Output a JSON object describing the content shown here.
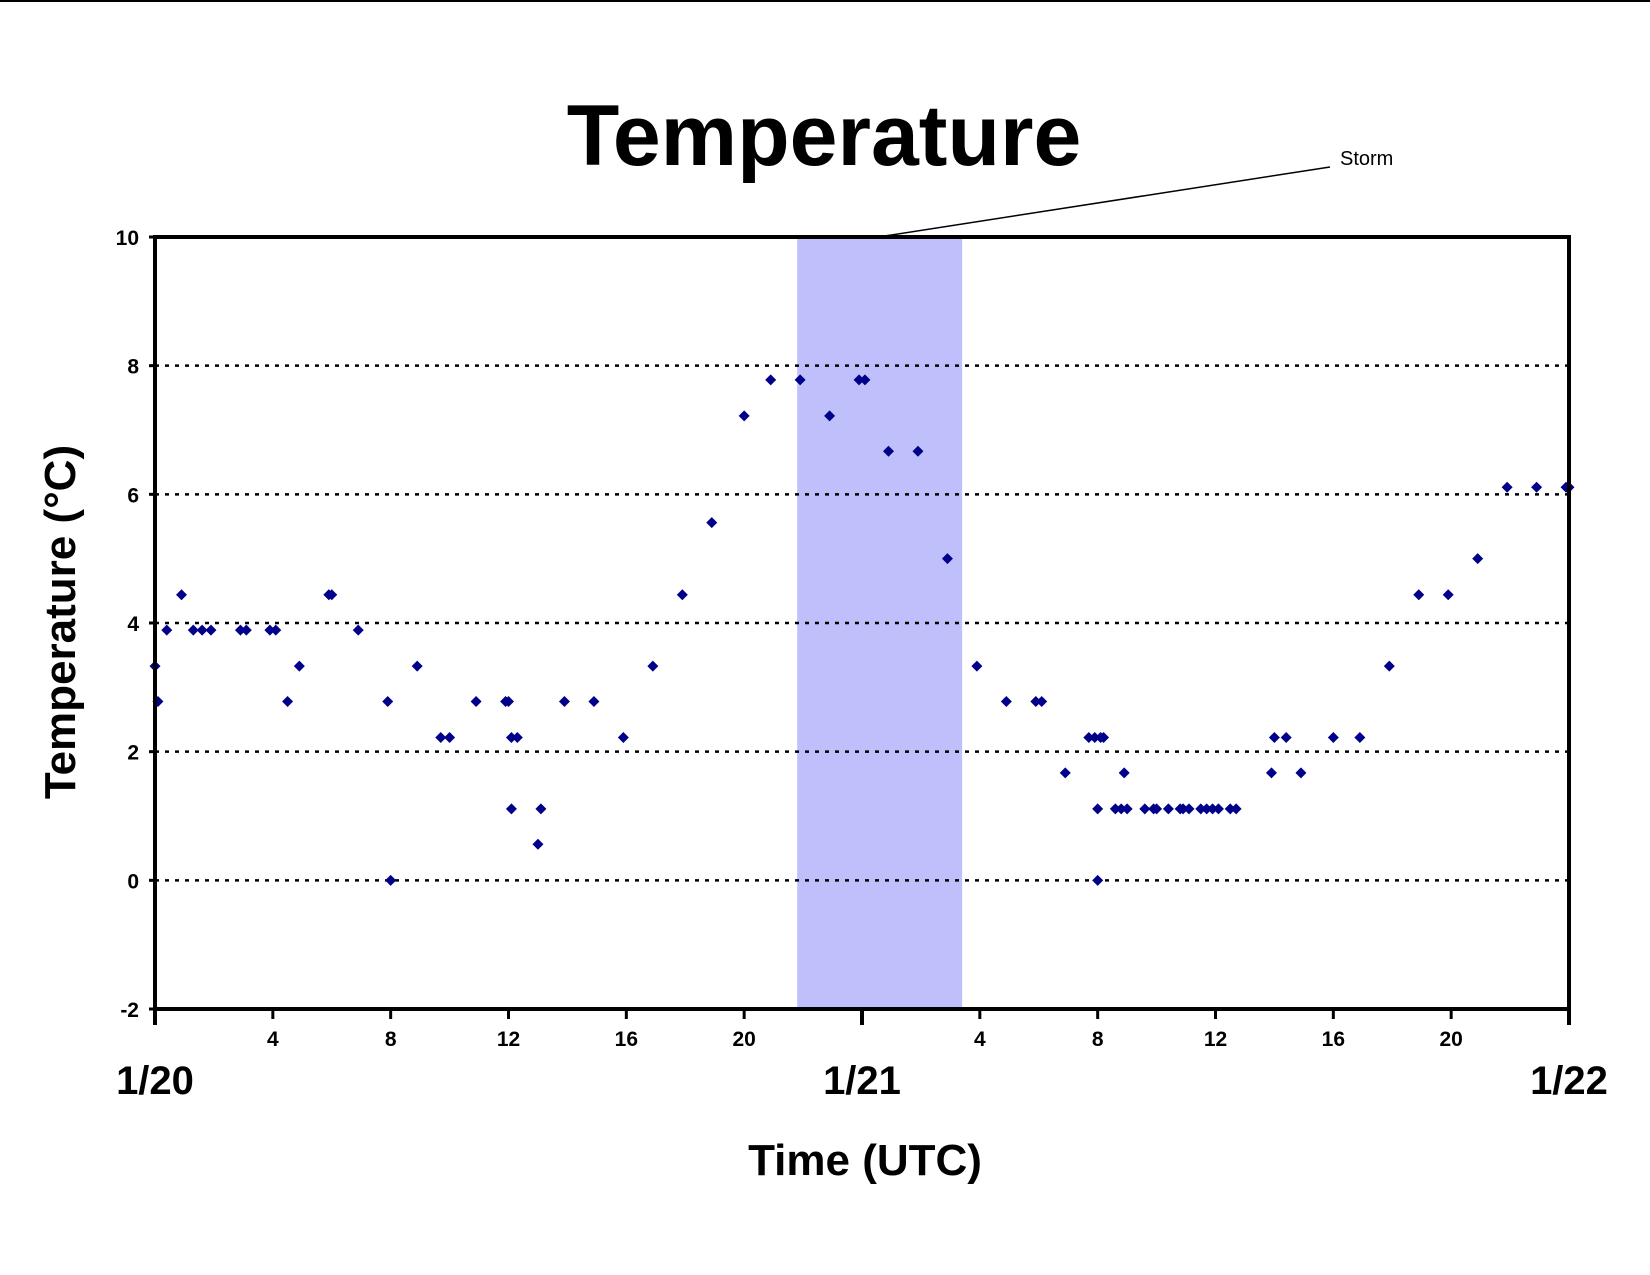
{
  "chart_data": {
    "type": "scatter",
    "title": "Temperature",
    "xlabel": "Time (UTC)",
    "ylabel": "Temperature (°C)",
    "ylim": [
      -2,
      10
    ],
    "yticks": [
      -2,
      0,
      2,
      4,
      6,
      8,
      10
    ],
    "xlim": [
      0,
      48
    ],
    "x_units": "hours since 1/20 00 UTC",
    "hour_ticks": [
      "4",
      "8",
      "12",
      "16",
      "20",
      "4",
      "8",
      "12",
      "16",
      "20"
    ],
    "day_labels": [
      "1/20",
      "1/21",
      "1/22"
    ],
    "grid": "horizontal dotted",
    "marker_color": "#00008b",
    "storm_band": {
      "label": "Storm",
      "x_start": 21.8,
      "x_end": 27.4,
      "color": "#bfbffb"
    },
    "series": [
      {
        "points": [
          [
            0.0,
            3.33
          ],
          [
            0.1,
            2.78
          ],
          [
            0.4,
            3.89
          ],
          [
            0.9,
            4.44
          ],
          [
            1.3,
            3.89
          ],
          [
            1.6,
            3.89
          ],
          [
            1.9,
            3.89
          ],
          [
            2.9,
            3.89
          ],
          [
            3.1,
            3.89
          ],
          [
            3.9,
            3.89
          ],
          [
            4.1,
            3.89
          ],
          [
            4.5,
            2.78
          ],
          [
            4.9,
            3.33
          ],
          [
            5.9,
            4.44
          ],
          [
            6.0,
            4.44
          ],
          [
            6.9,
            3.89
          ],
          [
            7.9,
            2.78
          ],
          [
            8.0,
            0.0
          ],
          [
            8.9,
            3.33
          ],
          [
            9.7,
            2.22
          ],
          [
            10.0,
            2.22
          ],
          [
            10.9,
            2.78
          ],
          [
            11.9,
            2.78
          ],
          [
            12.0,
            2.78
          ],
          [
            12.1,
            1.11
          ],
          [
            12.1,
            2.22
          ],
          [
            12.3,
            2.22
          ],
          [
            13.0,
            0.56
          ],
          [
            13.1,
            1.11
          ],
          [
            13.9,
            2.78
          ],
          [
            14.9,
            2.78
          ],
          [
            15.9,
            2.22
          ],
          [
            16.9,
            3.33
          ],
          [
            17.9,
            4.44
          ],
          [
            18.9,
            5.56
          ],
          [
            20.0,
            7.22
          ],
          [
            20.9,
            7.78
          ],
          [
            21.9,
            7.78
          ],
          [
            22.9,
            7.22
          ],
          [
            23.9,
            7.78
          ],
          [
            24.1,
            7.78
          ],
          [
            24.9,
            6.67
          ],
          [
            25.9,
            6.67
          ],
          [
            26.9,
            5.0
          ],
          [
            27.9,
            3.33
          ],
          [
            28.9,
            2.78
          ],
          [
            29.9,
            2.78
          ],
          [
            30.1,
            2.78
          ],
          [
            30.9,
            1.67
          ],
          [
            31.7,
            2.22
          ],
          [
            31.9,
            2.22
          ],
          [
            32.0,
            1.11
          ],
          [
            32.0,
            0.0
          ],
          [
            32.1,
            2.22
          ],
          [
            32.2,
            2.22
          ],
          [
            32.6,
            1.11
          ],
          [
            32.8,
            1.11
          ],
          [
            32.9,
            1.67
          ],
          [
            33.0,
            1.11
          ],
          [
            33.6,
            1.11
          ],
          [
            33.9,
            1.11
          ],
          [
            34.0,
            1.11
          ],
          [
            34.4,
            1.11
          ],
          [
            34.8,
            1.11
          ],
          [
            34.9,
            1.11
          ],
          [
            35.1,
            1.11
          ],
          [
            35.5,
            1.11
          ],
          [
            35.7,
            1.11
          ],
          [
            35.9,
            1.11
          ],
          [
            36.1,
            1.11
          ],
          [
            36.5,
            1.11
          ],
          [
            36.7,
            1.11
          ],
          [
            37.9,
            1.67
          ],
          [
            38.0,
            2.22
          ],
          [
            38.4,
            2.22
          ],
          [
            38.9,
            1.67
          ],
          [
            40.0,
            2.22
          ],
          [
            40.9,
            2.22
          ],
          [
            41.9,
            3.33
          ],
          [
            42.9,
            4.44
          ],
          [
            43.9,
            4.44
          ],
          [
            44.9,
            5.0
          ],
          [
            45.9,
            6.11
          ],
          [
            46.9,
            6.11
          ],
          [
            47.9,
            6.11
          ],
          [
            48.0,
            6.11
          ]
        ]
      }
    ]
  }
}
